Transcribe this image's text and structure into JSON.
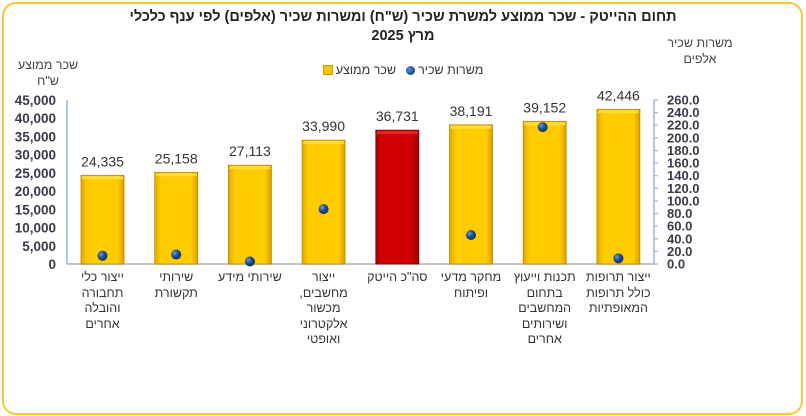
{
  "chart_data": {
    "type": "bar",
    "title": "תחום ההייטק -  שכר ממוצע למשרת שכיר (ש\"ח) ומשרות שכיר (אלפים) לפי ענף כלכלי",
    "subtitle": "מרץ 2025",
    "ylabel_left": [
      "שכר ממוצע",
      "ש\"ח"
    ],
    "ylabel_right": [
      "משרות שכיר",
      "אלפים"
    ],
    "ylim_left": [
      0,
      45000
    ],
    "ylim_right": [
      0,
      260
    ],
    "yticks_left": [
      "45,000",
      "40,000",
      "35,000",
      "30,000",
      "25,000",
      "20,000",
      "15,000",
      "10,000",
      "5,000",
      "0"
    ],
    "yticks_left_values": [
      45000,
      40000,
      35000,
      30000,
      25000,
      20000,
      15000,
      10000,
      5000,
      0
    ],
    "yticks_right": [
      "260.0",
      "240.0",
      "220.0",
      "200.0",
      "180.0",
      "160.0",
      "140.0",
      "120.0",
      "100.0",
      "80.0",
      "60.0",
      "40.0",
      "20.0",
      "0.0"
    ],
    "yticks_right_values": [
      260,
      240,
      220,
      200,
      180,
      160,
      140,
      120,
      100,
      80,
      60,
      40,
      20,
      0
    ],
    "legend": {
      "position": "top-center",
      "items": [
        {
          "name": "משרות שכיר",
          "marker": "dot",
          "color": "#1f4e8c"
        },
        {
          "name": "שכר ממוצע",
          "marker": "square",
          "color": "#f7c800"
        }
      ]
    },
    "categories": [
      [
        "ייצור כלי",
        "תחבורה",
        "והובלה",
        "אחרים"
      ],
      [
        "שירותי",
        "תקשורת"
      ],
      [
        "שירותי מידע"
      ],
      [
        "ייצור",
        "מחשבים,",
        "מכשור",
        "אלקטרוני",
        "ואופטי"
      ],
      [
        "סה\"כ הייטק"
      ],
      [
        "מחקר מדעי",
        "ופיתוח"
      ],
      [
        "תכנות וייעוץ",
        "בתחום",
        "המחשבים",
        "ושירותים",
        "אחרים"
      ],
      [
        "ייצור תרופות",
        "כולל תרופות",
        "המאופתיות"
      ]
    ],
    "series": [
      {
        "name": "שכר ממוצע",
        "type": "bar",
        "axis": "left",
        "values": [
          24335,
          25158,
          27113,
          33990,
          36731,
          38191,
          39152,
          42446
        ],
        "labels": [
          "24,335",
          "25,158",
          "27,113",
          "33,990",
          "36,731",
          "38,191",
          "39,152",
          "42,446"
        ],
        "colors": [
          "#f7c800",
          "#f7c800",
          "#f7c800",
          "#f7c800",
          "#cc0000",
          "#f7c800",
          "#f7c800",
          "#f7c800"
        ]
      },
      {
        "name": "משרות שכיר",
        "type": "scatter",
        "axis": "right",
        "values": [
          13,
          15,
          4,
          87,
          null,
          46,
          217,
          9
        ],
        "color": "#1f4e8c"
      }
    ]
  }
}
